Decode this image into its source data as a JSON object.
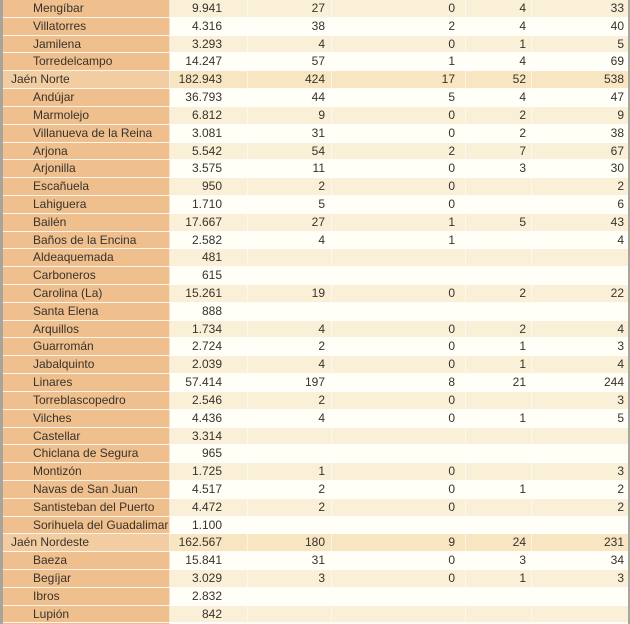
{
  "palette": {
    "name_cell_bg": "#efc08e",
    "group_name_cell_bg": "#f2cda2",
    "row_cream_bg": "#faf0d8",
    "row_plain_bg": "#fffef7",
    "group_row_bg": "#f8e6c2",
    "text_color": "#38322b",
    "outer_border": "#a9a49c"
  },
  "table": {
    "rows": [
      {
        "name": "Mengíbar",
        "level": "sub",
        "values": [
          "9.941",
          "27",
          "0",
          "4",
          "33"
        ]
      },
      {
        "name": "Villatorres",
        "level": "sub",
        "values": [
          "4.316",
          "38",
          "2",
          "4",
          "40"
        ]
      },
      {
        "name": "Jamilena",
        "level": "sub",
        "values": [
          "3.293",
          "4",
          "0",
          "1",
          "5"
        ]
      },
      {
        "name": "Torredelcampo",
        "level": "sub",
        "values": [
          "14.247",
          "57",
          "1",
          "4",
          "69"
        ]
      },
      {
        "name": "Jaén Norte",
        "level": "group",
        "values": [
          "182.943",
          "424",
          "17",
          "52",
          "538"
        ]
      },
      {
        "name": "Andújar",
        "level": "sub",
        "values": [
          "36.793",
          "44",
          "5",
          "4",
          "47"
        ]
      },
      {
        "name": "Marmolejo",
        "level": "sub",
        "values": [
          "6.812",
          "9",
          "0",
          "2",
          "9"
        ]
      },
      {
        "name": "Villanueva de la Reina",
        "level": "sub",
        "values": [
          "3.081",
          "31",
          "0",
          "2",
          "38"
        ]
      },
      {
        "name": "Arjona",
        "level": "sub",
        "values": [
          "5.542",
          "54",
          "2",
          "7",
          "67"
        ]
      },
      {
        "name": "Arjonilla",
        "level": "sub",
        "values": [
          "3.575",
          "11",
          "0",
          "3",
          "30"
        ]
      },
      {
        "name": "Escañuela",
        "level": "sub",
        "values": [
          "950",
          "2",
          "0",
          "",
          "2"
        ]
      },
      {
        "name": "Lahiguera",
        "level": "sub",
        "values": [
          "1.710",
          "5",
          "0",
          "",
          "6"
        ]
      },
      {
        "name": "Bailén",
        "level": "sub",
        "values": [
          "17.667",
          "27",
          "1",
          "5",
          "43"
        ]
      },
      {
        "name": "Baños de la Encina",
        "level": "sub",
        "values": [
          "2.582",
          "4",
          "1",
          "",
          "4"
        ]
      },
      {
        "name": "Aldeaquemada",
        "level": "sub",
        "values": [
          "481",
          "",
          "",
          "",
          ""
        ]
      },
      {
        "name": "Carboneros",
        "level": "sub",
        "values": [
          "615",
          "",
          "",
          "",
          ""
        ]
      },
      {
        "name": "Carolina (La)",
        "level": "sub",
        "values": [
          "15.261",
          "19",
          "0",
          "2",
          "22"
        ]
      },
      {
        "name": "Santa Elena",
        "level": "sub",
        "values": [
          "888",
          "",
          "",
          "",
          ""
        ]
      },
      {
        "name": "Arquillos",
        "level": "sub",
        "values": [
          "1.734",
          "4",
          "0",
          "2",
          "4"
        ]
      },
      {
        "name": "Guarromán",
        "level": "sub",
        "values": [
          "2.724",
          "2",
          "0",
          "1",
          "3"
        ]
      },
      {
        "name": "Jabalquinto",
        "level": "sub",
        "values": [
          "2.039",
          "4",
          "0",
          "1",
          "4"
        ]
      },
      {
        "name": "Linares",
        "level": "sub",
        "values": [
          "57.414",
          "197",
          "8",
          "21",
          "244"
        ]
      },
      {
        "name": "Torreblascopedro",
        "level": "sub",
        "values": [
          "2.546",
          "2",
          "0",
          "",
          "3"
        ]
      },
      {
        "name": "Vilches",
        "level": "sub",
        "values": [
          "4.436",
          "4",
          "0",
          "1",
          "5"
        ]
      },
      {
        "name": "Castellar",
        "level": "sub",
        "values": [
          "3.314",
          "",
          "",
          "",
          ""
        ]
      },
      {
        "name": "Chiclana de Segura",
        "level": "sub",
        "values": [
          "965",
          "",
          "",
          "",
          ""
        ]
      },
      {
        "name": "Montizón",
        "level": "sub",
        "values": [
          "1.725",
          "1",
          "0",
          "",
          "3"
        ]
      },
      {
        "name": "Navas de San Juan",
        "level": "sub",
        "values": [
          "4.517",
          "2",
          "0",
          "1",
          "2"
        ]
      },
      {
        "name": "Santisteban del Puerto",
        "level": "sub",
        "values": [
          "4.472",
          "2",
          "0",
          "",
          "2"
        ]
      },
      {
        "name": "Sorihuela del Guadalimar",
        "level": "sub",
        "values": [
          "1.100",
          "",
          "",
          "",
          ""
        ]
      },
      {
        "name": "Jaén Nordeste",
        "level": "group",
        "values": [
          "162.567",
          "180",
          "9",
          "24",
          "231"
        ]
      },
      {
        "name": "Baeza",
        "level": "sub",
        "values": [
          "15.841",
          "31",
          "0",
          "3",
          "34"
        ]
      },
      {
        "name": "Begíjar",
        "level": "sub",
        "values": [
          "3.029",
          "3",
          "0",
          "1",
          "3"
        ]
      },
      {
        "name": "Ibros",
        "level": "sub",
        "values": [
          "2.832",
          "",
          "",
          "",
          ""
        ]
      },
      {
        "name": "Lupión",
        "level": "sub",
        "values": [
          "842",
          "",
          "",
          "",
          ""
        ]
      },
      {
        "name": "",
        "level": "sub",
        "values": [
          "",
          "",
          "",
          "",
          ""
        ]
      }
    ]
  }
}
